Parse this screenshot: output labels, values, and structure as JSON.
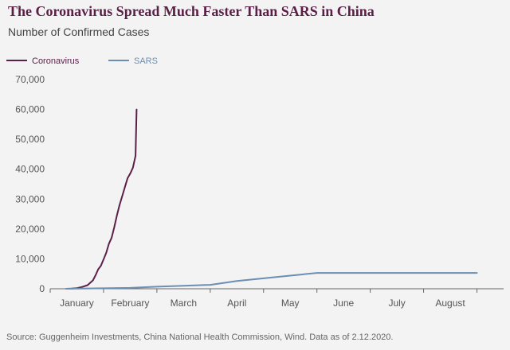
{
  "chart_data": {
    "type": "line",
    "title": "The Coronavirus Spread Much Faster Than SARS in China",
    "subtitle": "Number of Confirmed Cases",
    "xlabel": "",
    "ylabel": "",
    "ylim": [
      0,
      70000
    ],
    "yticks": [
      {
        "value": 0,
        "label": "0"
      },
      {
        "value": 10000,
        "label": "10,000"
      },
      {
        "value": 20000,
        "label": "20,000"
      },
      {
        "value": 30000,
        "label": "30,000"
      },
      {
        "value": 40000,
        "label": "40,000"
      },
      {
        "value": 50000,
        "label": "50,000"
      },
      {
        "value": 60000,
        "label": "60,000"
      },
      {
        "value": 70000,
        "label": "70,000"
      }
    ],
    "xlim": [
      0,
      8.5
    ],
    "months": [
      "January",
      "February",
      "March",
      "April",
      "May",
      "June",
      "July",
      "August"
    ],
    "grid": false,
    "legend_position": "top-left",
    "series": [
      {
        "name": "Coronavirus",
        "color": "#5b2049",
        "x": [
          0.3,
          0.4,
          0.5,
          0.55,
          0.6,
          0.7,
          0.75,
          0.8,
          0.85,
          0.9,
          0.95,
          1.0,
          1.05,
          1.1,
          1.15,
          1.2,
          1.25,
          1.3,
          1.35,
          1.4,
          1.45,
          1.5,
          1.55,
          1.6,
          1.62
        ],
        "y": [
          0,
          50,
          200,
          400,
          600,
          1200,
          2000,
          2800,
          4500,
          6500,
          7700,
          9800,
          12000,
          15000,
          17000,
          20500,
          24500,
          28000,
          31000,
          34000,
          37000,
          38500,
          40500,
          44500,
          60000
        ]
      },
      {
        "name": "SARS",
        "color": "#6b8fb3",
        "x": [
          0.3,
          1.0,
          1.5,
          2.0,
          2.5,
          3.0,
          3.5,
          4.0,
          4.5,
          5.0,
          5.5,
          6.0,
          6.5,
          7.0,
          7.5,
          8.0
        ],
        "y": [
          0,
          150,
          300,
          700,
          1000,
          1300,
          2600,
          3500,
          4400,
          5300,
          5300,
          5300,
          5300,
          5300,
          5300,
          5300
        ]
      }
    ]
  },
  "source": "Source: Guggenheim Investments, China National Health Commission, Wind. Data as of 2.12.2020."
}
